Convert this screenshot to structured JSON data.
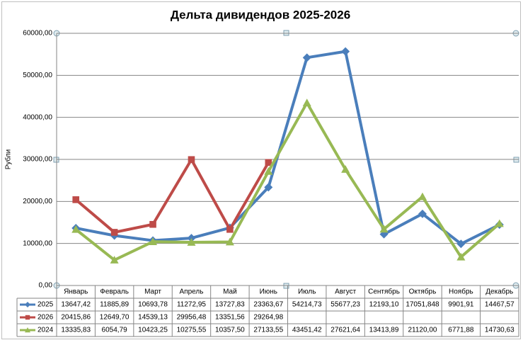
{
  "chart_data": {
    "type": "line",
    "title": "Дельта дивидендов 2025-2026",
    "y_label": "Рубли",
    "categories": [
      "Январь",
      "Февраль",
      "Март",
      "Апрель",
      "Май",
      "Июнь",
      "Июль",
      "Август",
      "Сентябрь",
      "Октябрь",
      "Ноябрь",
      "Декабрь"
    ],
    "series": [
      {
        "name": "2025",
        "color": "#4a7ebb",
        "marker": "diamond",
        "values": [
          13647.42,
          11885.89,
          10693.78,
          11272.95,
          13727.83,
          23363.67,
          54214.73,
          55677.23,
          12193.1,
          17051.848,
          9901.91,
          14467.57
        ],
        "value_labels": [
          "13647,42",
          "11885,89",
          "10693,78",
          "11272,95",
          "13727,83",
          "23363,67",
          "54214,73",
          "55677,23",
          "12193,10",
          "17051,848",
          "9901,91",
          "14467,57"
        ]
      },
      {
        "name": "2026",
        "color": "#be4b48",
        "marker": "square",
        "values": [
          20415.86,
          12649.7,
          14539.13,
          29956.48,
          13351.56,
          29264.98,
          null,
          null,
          null,
          null,
          null,
          null
        ],
        "value_labels": [
          "20415,86",
          "12649,70",
          "14539,13",
          "29956,48",
          "13351,56",
          "29264,98",
          null,
          null,
          null,
          null,
          null,
          null
        ]
      },
      {
        "name": "2024",
        "color": "#98b954",
        "marker": "triangle",
        "values": [
          13335.83,
          6054.79,
          10423.25,
          10275.55,
          10357.5,
          27133.55,
          43451.42,
          27621.64,
          13413.89,
          21120.0,
          6771.88,
          14730.63
        ],
        "value_labels": [
          "13335,83",
          "6054,79",
          "10423,25",
          "10275,55",
          "10357,50",
          "27133,55",
          "43451,42",
          "27621,64",
          "13413,89",
          "21120,00",
          "6771,88",
          "14730,63"
        ]
      }
    ],
    "ylim": [
      0,
      60000
    ],
    "yticks": [
      {
        "value": 0,
        "label": "0,00"
      },
      {
        "value": 10000,
        "label": "10000,00"
      },
      {
        "value": 20000,
        "label": "20000,00"
      },
      {
        "value": 30000,
        "label": "30000,00"
      },
      {
        "value": 40000,
        "label": "40000,00"
      },
      {
        "value": 50000,
        "label": "50000,00"
      },
      {
        "value": 60000,
        "label": "60000,00"
      }
    ],
    "grid": true
  }
}
